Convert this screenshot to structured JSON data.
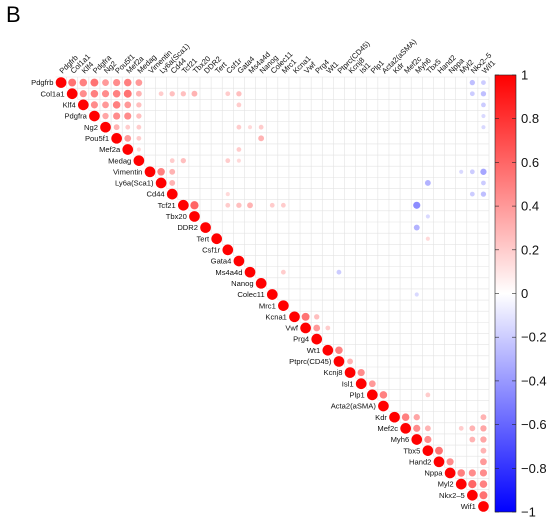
{
  "panel_letter": "B",
  "chart_data": {
    "type": "heatmap",
    "title": "",
    "xlabel": "",
    "ylabel": "",
    "layout": "upper-triangle correlation matrix, circle size and color encode correlation",
    "legend": "right",
    "grid": true,
    "variables": [
      "Pdgfrb",
      "Col1a1",
      "Klf4",
      "Pdgfra",
      "Ng2",
      "Pou5f1",
      "Mef2a",
      "Medag",
      "Vimentin",
      "Ly6a(Sca1)",
      "Cd44",
      "Tcf21",
      "Tbx20",
      "DDR2",
      "Tert",
      "Csf1r",
      "Gata4",
      "Ms4a4d",
      "Nanog",
      "Colec11",
      "Mrc1",
      "Kcna1",
      "Vwf",
      "Prg4",
      "Wt1",
      "Ptprc(CD45)",
      "Kcnj8",
      "Isl1",
      "Plp1",
      "Acta2(aSMA)",
      "Kdr",
      "Mef2c",
      "Myh6",
      "Tbx5",
      "Hand2",
      "Nppa",
      "Myl2",
      "Nkx2–5",
      "Wif1"
    ],
    "colorbar": {
      "min": -1,
      "max": 1,
      "ticks": [
        1,
        0.8,
        0.6,
        0.4,
        0.2,
        0,
        -0.2,
        -0.4,
        -0.6,
        -0.8,
        -1
      ],
      "colors": [
        "#0000ff",
        "#ffffff",
        "#ff0000"
      ]
    },
    "correlations": [
      [
        "Pdgfrb",
        "Col1a1",
        0.55
      ],
      [
        "Pdgfrb",
        "Klf4",
        0.5
      ],
      [
        "Pdgfrb",
        "Pdgfra",
        0.55
      ],
      [
        "Pdgfrb",
        "Ng2",
        0.4
      ],
      [
        "Pdgfrb",
        "Pou5f1",
        0.45
      ],
      [
        "Pdgfrb",
        "Mef2a",
        0.5
      ],
      [
        "Pdgfrb",
        "Medag",
        0.4
      ],
      [
        "Pdgfrb",
        "Nkx2–5",
        -0.25
      ],
      [
        "Pdgfrb",
        "Wif1",
        -0.2
      ],
      [
        "Col1a1",
        "Klf4",
        0.45
      ],
      [
        "Col1a1",
        "Pdgfra",
        0.5
      ],
      [
        "Col1a1",
        "Ng2",
        0.45
      ],
      [
        "Col1a1",
        "Pou5f1",
        0.5
      ],
      [
        "Col1a1",
        "Mef2a",
        0.55
      ],
      [
        "Col1a1",
        "Medag",
        0.3
      ],
      [
        "Col1a1",
        "Ly6a(Sca1)",
        0.2
      ],
      [
        "Col1a1",
        "Cd44",
        0.25
      ],
      [
        "Col1a1",
        "Tcf21",
        0.25
      ],
      [
        "Col1a1",
        "Tbx20",
        0.3
      ],
      [
        "Col1a1",
        "Csf1r",
        0.2
      ],
      [
        "Col1a1",
        "Gata4",
        0.25
      ],
      [
        "Col1a1",
        "Nkx2–5",
        -0.2
      ],
      [
        "Col1a1",
        "Wif1",
        -0.25
      ],
      [
        "Klf4",
        "Pdgfra",
        0.45
      ],
      [
        "Klf4",
        "Ng2",
        0.4
      ],
      [
        "Klf4",
        "Pou5f1",
        0.5
      ],
      [
        "Klf4",
        "Mef2a",
        0.4
      ],
      [
        "Klf4",
        "Medag",
        0.25
      ],
      [
        "Klf4",
        "Gata4",
        0.2
      ],
      [
        "Klf4",
        "Wif1",
        -0.2
      ],
      [
        "Pdgfra",
        "Ng2",
        0.35
      ],
      [
        "Pdgfra",
        "Pou5f1",
        0.45
      ],
      [
        "Pdgfra",
        "Mef2a",
        0.45
      ],
      [
        "Pdgfra",
        "Medag",
        0.25
      ],
      [
        "Pdgfra",
        "Wif1",
        -0.15
      ],
      [
        "Ng2",
        "Pou5f1",
        0.3
      ],
      [
        "Ng2",
        "Mef2a",
        0.2
      ],
      [
        "Ng2",
        "Medag",
        0.2
      ],
      [
        "Ng2",
        "Gata4",
        0.2
      ],
      [
        "Ng2",
        "Ms4a4d",
        0.15
      ],
      [
        "Ng2",
        "Nanog",
        0.2
      ],
      [
        "Ng2",
        "Wif1",
        -0.15
      ],
      [
        "Pou5f1",
        "Mef2a",
        0.4
      ],
      [
        "Pou5f1",
        "Medag",
        0.2
      ],
      [
        "Pou5f1",
        "Nanog",
        0.3
      ],
      [
        "Mef2a",
        "Medag",
        0.15
      ],
      [
        "Mef2a",
        "Gata4",
        0.2
      ],
      [
        "Medag",
        "Cd44",
        0.2
      ],
      [
        "Medag",
        "Tcf21",
        0.25
      ],
      [
        "Medag",
        "Csf1r",
        0.2
      ],
      [
        "Medag",
        "Gata4",
        0.15
      ],
      [
        "Vimentin",
        "Ly6a(Sca1)",
        0.5
      ],
      [
        "Vimentin",
        "Cd44",
        0.3
      ],
      [
        "Vimentin",
        "Myl2",
        -0.15
      ],
      [
        "Vimentin",
        "Nkx2–5",
        -0.2
      ],
      [
        "Vimentin",
        "Wif1",
        -0.35
      ],
      [
        "Ly6a(Sca1)",
        "Cd44",
        0.3
      ],
      [
        "Ly6a(Sca1)",
        "Tbx5",
        -0.3
      ],
      [
        "Ly6a(Sca1)",
        "Wif1",
        -0.2
      ],
      [
        "Cd44",
        "Csf1r",
        0.15
      ],
      [
        "Cd44",
        "Nkx2–5",
        -0.2
      ],
      [
        "Cd44",
        "Wif1",
        -0.25
      ],
      [
        "Tcf21",
        "Tbx20",
        0.6
      ],
      [
        "Tcf21",
        "Csf1r",
        0.2
      ],
      [
        "Tcf21",
        "Gata4",
        0.25
      ],
      [
        "Tcf21",
        "Ms4a4d",
        0.3
      ],
      [
        "Tcf21",
        "Colec11",
        0.2
      ],
      [
        "Tcf21",
        "Mrc1",
        0.2
      ],
      [
        "Tcf21",
        "Myh6",
        -0.45
      ],
      [
        "Tbx20",
        "Tbx5",
        -0.15
      ],
      [
        "DDR2",
        "Myh6",
        -0.3
      ],
      [
        "Tert",
        "Tbx5",
        0.15
      ],
      [
        "Ms4a4d",
        "Mrc1",
        0.2
      ],
      [
        "Ms4a4d",
        "Ptprc(CD45)",
        -0.2
      ],
      [
        "Colec11",
        "Myh6",
        -0.15
      ],
      [
        "Kcna1",
        "Vwf",
        0.55
      ],
      [
        "Kcna1",
        "Prg4",
        0.25
      ],
      [
        "Vwf",
        "Prg4",
        0.4
      ],
      [
        "Vwf",
        "Wt1",
        0.2
      ],
      [
        "Wt1",
        "Ptprc(CD45)",
        0.5
      ],
      [
        "Ptprc(CD45)",
        "Kcnj8",
        0.3
      ],
      [
        "Kcnj8",
        "Isl1",
        0.45
      ],
      [
        "Isl1",
        "Plp1",
        0.4
      ],
      [
        "Plp1",
        "Acta2(aSMA)",
        0.5
      ],
      [
        "Plp1",
        "Tbx5",
        0.2
      ],
      [
        "Kdr",
        "Mef2c",
        0.5
      ],
      [
        "Kdr",
        "Myh6",
        0.35
      ],
      [
        "Kdr",
        "Wif1",
        0.3
      ],
      [
        "Mef2c",
        "Myh6",
        0.45
      ],
      [
        "Mef2c",
        "Tbx5",
        0.3
      ],
      [
        "Mef2c",
        "Myl2",
        0.2
      ],
      [
        "Mef2c",
        "Nkx2–5",
        0.3
      ],
      [
        "Mef2c",
        "Wif1",
        0.35
      ],
      [
        "Myh6",
        "Tbx5",
        0.45
      ],
      [
        "Myh6",
        "Nkx2–5",
        0.3
      ],
      [
        "Myh6",
        "Wif1",
        0.35
      ],
      [
        "Tbx5",
        "Hand2",
        0.55
      ],
      [
        "Tbx5",
        "Wif1",
        0.3
      ],
      [
        "Hand2",
        "Nppa",
        0.45
      ],
      [
        "Hand2",
        "Wif1",
        0.4
      ],
      [
        "Nppa",
        "Myl2",
        0.5
      ],
      [
        "Nppa",
        "Nkx2–5",
        0.45
      ],
      [
        "Nppa",
        "Wif1",
        0.45
      ],
      [
        "Myl2",
        "Nkx2–5",
        0.6
      ],
      [
        "Myl2",
        "Wif1",
        0.5
      ],
      [
        "Nkx2–5",
        "Wif1",
        0.55
      ]
    ]
  }
}
